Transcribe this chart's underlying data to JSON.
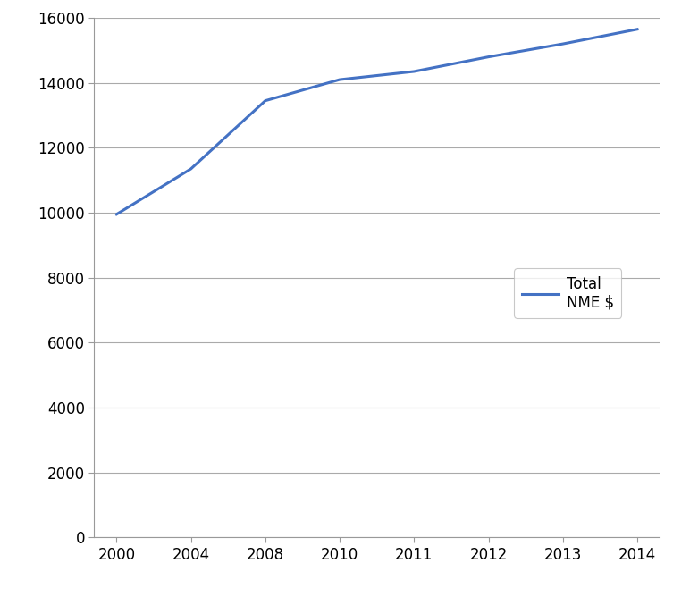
{
  "x_labels": [
    "2000",
    "2004",
    "2008",
    "2010",
    "2011",
    "2012",
    "2013",
    "2014"
  ],
  "x_values": [
    0,
    1,
    2,
    3,
    4,
    5,
    6,
    7
  ],
  "y_values": [
    9950,
    11350,
    13450,
    14100,
    14350,
    14800,
    15200,
    15650
  ],
  "line_color": "#4472C4",
  "line_width": 2.2,
  "ylim": [
    0,
    16000
  ],
  "yticks": [
    0,
    2000,
    4000,
    6000,
    8000,
    10000,
    12000,
    14000,
    16000
  ],
  "legend_label": "Total\nNME $",
  "grid_color": "#AAAAAA",
  "grid_linewidth": 0.8,
  "background_color": "#FFFFFF",
  "figure_width": 7.53,
  "figure_height": 6.68,
  "tick_fontsize": 12,
  "spine_color": "#999999"
}
